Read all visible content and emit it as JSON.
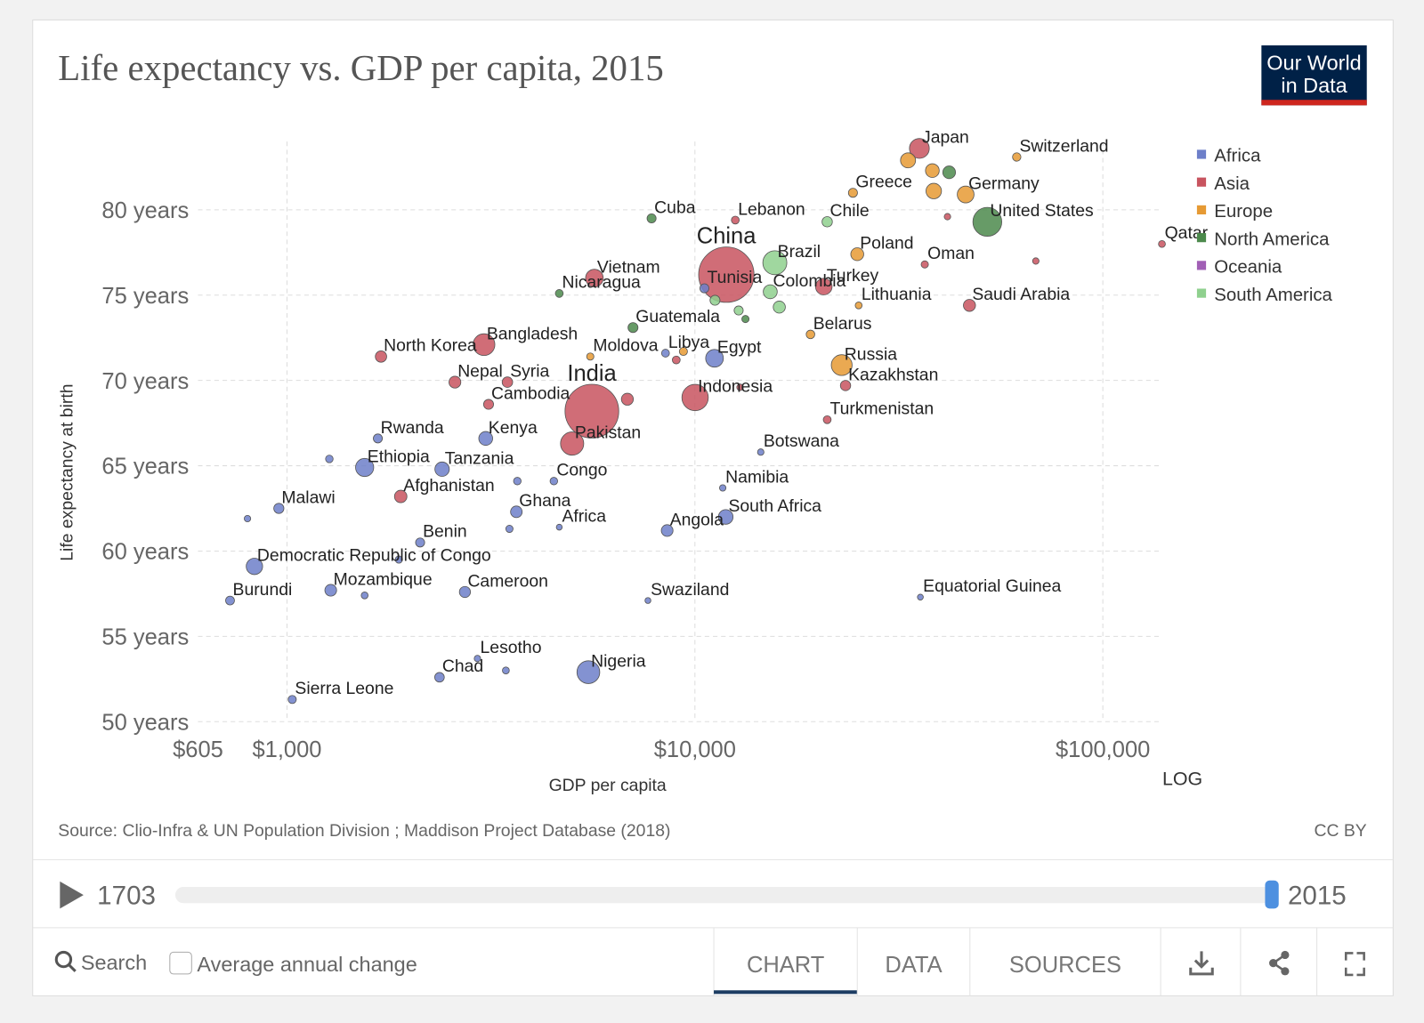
{
  "header": {
    "title": "Life expectancy vs. GDP per capita, 2015",
    "logo": [
      "Our World",
      "in Data"
    ]
  },
  "chart_data": {
    "type": "scatter",
    "xlabel": "GDP per capita",
    "ylabel": "Life expectancy at birth",
    "xscale": "log",
    "scale_label": "LOG",
    "xlim": [
      605,
      140000
    ],
    "xticks": [
      {
        "value": 605,
        "label": "$605"
      },
      {
        "value": 1000,
        "label": "$1,000"
      },
      {
        "value": 10000,
        "label": "$10,000"
      },
      {
        "value": 100000,
        "label": "$100,000"
      }
    ],
    "ylim": [
      50,
      84
    ],
    "yticks": [
      {
        "value": 50,
        "label": "50 years"
      },
      {
        "value": 55,
        "label": "55 years"
      },
      {
        "value": 60,
        "label": "60 years"
      },
      {
        "value": 65,
        "label": "65 years"
      },
      {
        "value": 70,
        "label": "70 years"
      },
      {
        "value": 75,
        "label": "75 years"
      },
      {
        "value": 80,
        "label": "80 years"
      }
    ],
    "grid": true,
    "legend": "right",
    "series": [
      {
        "name": "Africa",
        "color": "#6d7fc9",
        "labels": [
          "Sierra Leone",
          "Chad",
          "Lesotho",
          "Nigeria",
          "Burundi",
          "Mozambique",
          "Cameroon",
          "Swaziland",
          "Equatorial Guinea",
          "Democratic Republic of Congo",
          "Benin",
          "Angola",
          "Africa",
          "South Africa",
          "Namibia",
          "Botswana",
          "Malawi",
          "Ghana",
          "Congo",
          "Tanzania",
          "Ethiopia",
          "Rwanda",
          "Kenya",
          "Egypt",
          "Libya",
          "Tunisia",
          null,
          null,
          null,
          null,
          null,
          null,
          null
        ],
        "x": [
          1030,
          2365,
          2930,
          5480,
          725,
          1280,
          2730,
          7670,
          35700,
          832,
          2120,
          8550,
          4650,
          11900,
          11700,
          14500,
          955,
          3650,
          4510,
          2400,
          1550,
          1670,
          3070,
          11170,
          8470,
          10550,
          800,
          1270,
          3670,
          3510,
          1880,
          1550,
          3440
        ],
        "values": [
          51.3,
          52.6,
          53.7,
          52.9,
          57.1,
          57.7,
          57.6,
          57.1,
          57.3,
          59.1,
          60.5,
          61.2,
          61.4,
          62.0,
          63.7,
          65.8,
          62.5,
          62.3,
          64.1,
          64.8,
          64.9,
          66.6,
          66.6,
          71.3,
          71.6,
          75.4,
          61.9,
          65.4,
          64.1,
          61.3,
          59.5,
          57.4,
          53.0
        ],
        "sizes": [
          7,
          14,
          2,
          180,
          10,
          28,
          23,
          1,
          1,
          76,
          11,
          28,
          1,
          55,
          2,
          2,
          17,
          27,
          5,
          53,
          100,
          11,
          47,
          94,
          6,
          11,
          2,
          5,
          5,
          4,
          4,
          3,
          3
        ]
      },
      {
        "name": "Asia",
        "color": "#c8545f",
        "labels": [
          "Japan",
          "Afghanistan",
          "Pakistan",
          "India",
          "Cambodia",
          "Nepal",
          "Syria",
          "North Korea",
          "Bangladesh",
          "Vietnam",
          "China",
          "Indonesia",
          "Turkmenistan",
          "Lebanon",
          "Oman",
          "Saudi Arabia",
          "Qatar",
          "Turkey",
          "Kazakhstan",
          null,
          null,
          null,
          null,
          null
        ],
        "x": [
          35500,
          1900,
          5000,
          5590,
          3120,
          2580,
          3470,
          1700,
          3040,
          5670,
          11940,
          10010,
          21100,
          12560,
          36600,
          47100,
          139600,
          20700,
          23400,
          6830,
          9000,
          12900,
          41600,
          68500
        ],
        "values": [
          83.6,
          63.2,
          66.3,
          68.2,
          68.6,
          69.9,
          69.9,
          71.4,
          72.1,
          76.0,
          76.2,
          69.0,
          67.7,
          79.4,
          76.8,
          74.4,
          78.0,
          75.5,
          69.7,
          68.9,
          71.2,
          69.6,
          79.6,
          77.0
        ],
        "sizes": [
          127,
          34,
          189,
          1310,
          16,
          29,
          19,
          25,
          161,
          93,
          1400,
          258,
          6,
          6,
          4,
          31,
          3,
          78,
          18,
          30,
          6,
          2,
          2,
          2
        ]
      },
      {
        "name": "Europe",
        "color": "#e69a34",
        "labels": [
          "Switzerland",
          "Germany",
          "Greece",
          "Poland",
          "Lithuania",
          "Belarus",
          "Russia",
          "Moldova",
          null,
          null,
          null,
          null
        ],
        "x": [
          61500,
          46100,
          24400,
          25000,
          25200,
          19200,
          22900,
          5540,
          38200,
          33300,
          38500,
          9370
        ],
        "values": [
          83.1,
          80.9,
          81.0,
          77.4,
          74.4,
          72.7,
          70.9,
          71.4,
          82.3,
          82.9,
          81.1,
          71.7
        ],
        "sizes": [
          8,
          81,
          11,
          38,
          3,
          9,
          144,
          4,
          46,
          60,
          65,
          7
        ]
      },
      {
        "name": "North America",
        "color": "#4c8a4c",
        "labels": [
          "United States",
          "Cuba",
          "Nicaragua",
          "Guatemala",
          null,
          null
        ],
        "x": [
          52100,
          7830,
          4650,
          7050,
          42000,
          13300
        ],
        "values": [
          79.3,
          79.5,
          75.1,
          73.1,
          82.2,
          73.6
        ],
        "sizes": [
          320,
          11,
          6,
          16,
          36,
          4
        ]
      },
      {
        "name": "Oceania",
        "color": "#a15fb5",
        "labels": [],
        "x": [],
        "values": [],
        "sizes": []
      },
      {
        "name": "South America",
        "color": "#8fd08e",
        "labels": [
          "Chile",
          "Brazil",
          "Colombia",
          null,
          null,
          null
        ],
        "x": [
          21100,
          15700,
          15300,
          11200,
          12800,
          16100
        ],
        "values": [
          79.3,
          76.9,
          75.2,
          74.7,
          74.1,
          74.3
        ],
        "sizes": [
          18,
          205,
          48,
          16,
          11,
          31
        ]
      }
    ]
  },
  "source": "Source: Clio-Infra & UN Population Division ; Maddison Project Database (2018)",
  "license": "CC BY",
  "timeline": {
    "start": 1703,
    "end": 2015
  },
  "controls": {
    "search": "Search",
    "checkbox": "Average annual change",
    "tabs": [
      "CHART",
      "DATA",
      "SOURCES"
    ],
    "active_tab": 0
  }
}
